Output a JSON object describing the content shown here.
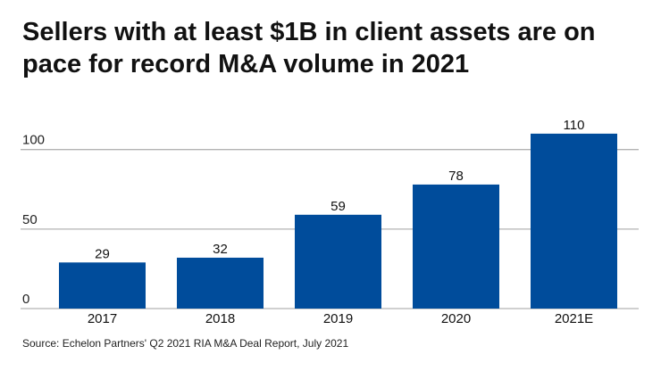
{
  "chart_data": {
    "type": "bar",
    "title": "Sellers with at least $1B in client assets are on pace for record M&A volume in 2021",
    "categories": [
      "2017",
      "2018",
      "2019",
      "2020",
      "2021E"
    ],
    "values": [
      29,
      32,
      59,
      78,
      110
    ],
    "xlabel": "",
    "ylabel": "",
    "ylim": [
      0,
      100
    ],
    "yticks": [
      0,
      50,
      100
    ],
    "grid": true,
    "data_labels": true,
    "bar_color": "#004c9b",
    "grid_color": "#b3b3b3",
    "source": "Source: Echelon Partners' Q2 2021 RIA M&A Deal Report, July 2021"
  }
}
